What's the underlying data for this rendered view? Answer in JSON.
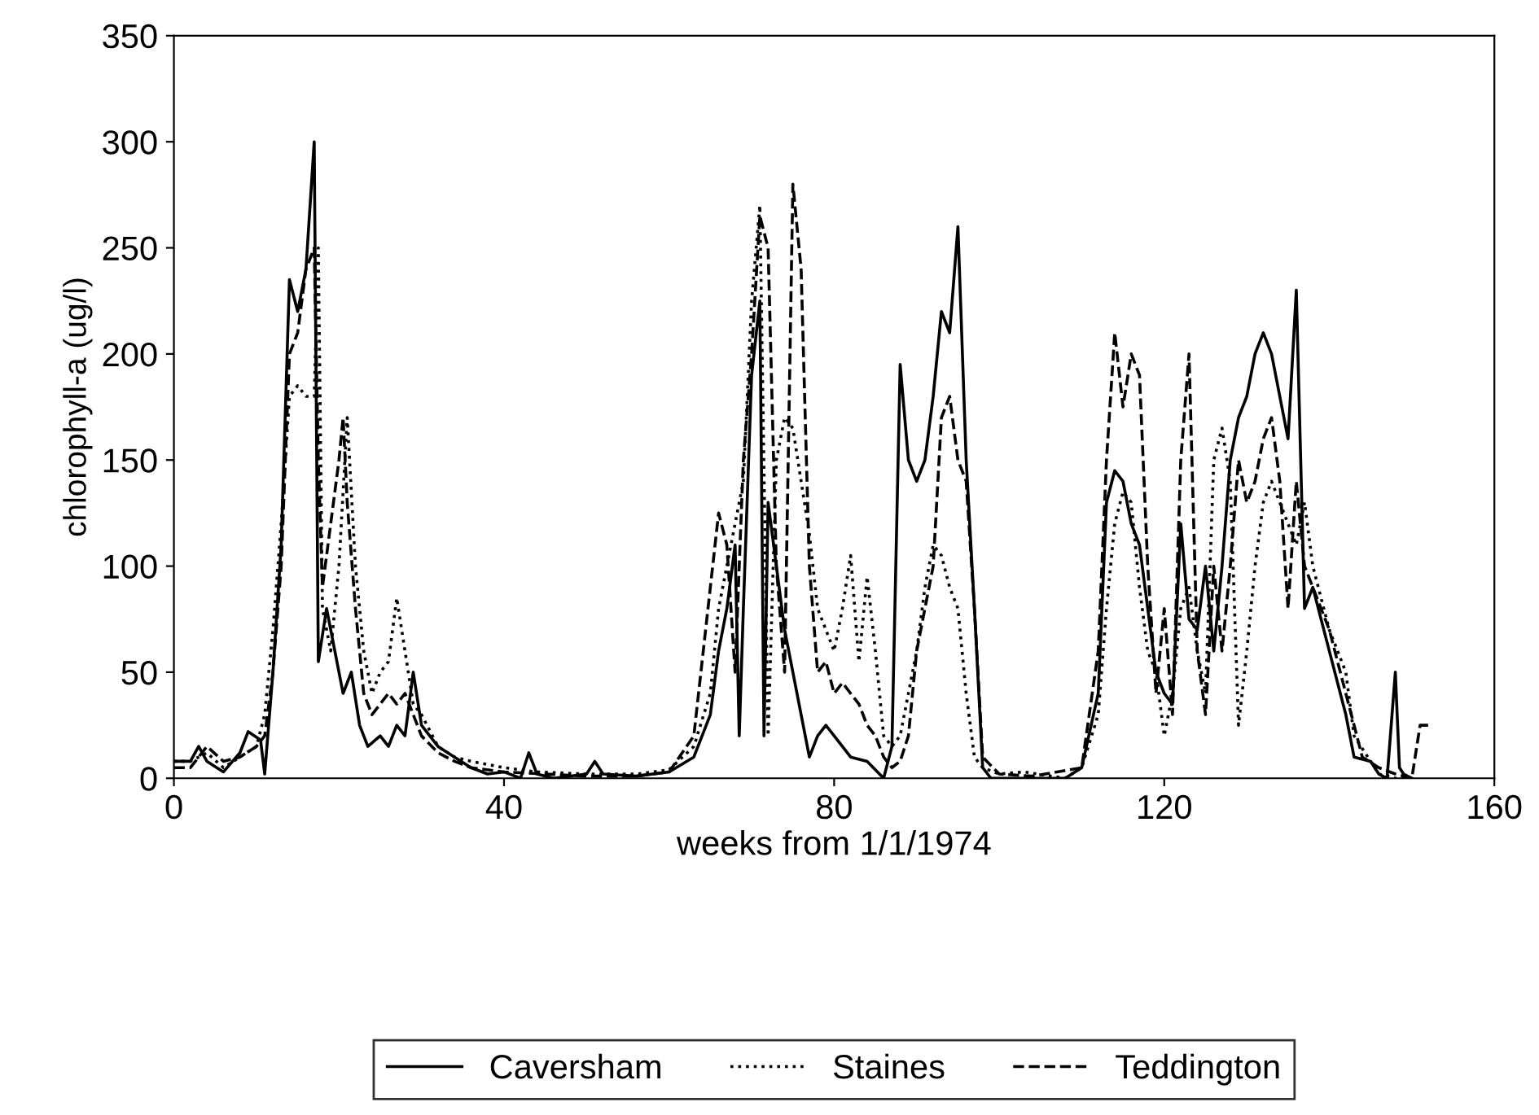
{
  "chart_data": {
    "type": "line",
    "xlabel": "weeks from 1/1/1974",
    "ylabel": "chlorophyll-a (ug/l)",
    "xlim": [
      0,
      160
    ],
    "xticks": [
      0,
      40,
      80,
      120,
      160
    ],
    "ylim": [
      0,
      350
    ],
    "yticks": [
      0,
      50,
      100,
      150,
      200,
      250,
      300,
      350
    ],
    "grid": false,
    "legend": "bottom",
    "marker": "none",
    "series": [
      {
        "name": "Caversham",
        "color": "#000000",
        "line_style": "solid",
        "x": [
          0,
          2,
          3,
          4,
          6,
          8,
          9,
          10.5,
          11,
          12,
          13,
          14,
          15,
          16,
          17,
          17.5,
          18.5,
          19.5,
          20.5,
          21.5,
          22.5,
          23.5,
          25,
          26,
          27,
          28,
          29,
          30,
          32,
          34,
          36,
          38,
          40,
          42,
          43,
          44,
          46,
          50,
          51,
          52,
          56,
          60,
          63,
          65,
          66,
          67,
          68,
          68.5,
          69,
          70,
          71,
          71.5,
          72,
          73,
          74,
          76,
          77,
          78,
          79,
          80,
          82,
          84,
          86,
          87,
          88,
          89,
          90,
          91,
          92,
          93,
          94,
          95,
          96,
          97,
          98,
          99,
          104,
          108,
          110,
          112,
          113,
          114,
          115,
          116,
          117,
          118,
          119,
          120,
          121,
          122,
          123,
          124,
          125,
          126,
          127,
          128,
          129,
          130,
          131,
          132,
          133,
          134,
          135,
          136,
          137,
          138,
          140,
          142,
          143,
          145,
          146,
          147,
          148,
          148.5,
          149,
          150
        ],
        "values": [
          8,
          8,
          15,
          8,
          3,
          12,
          22,
          18,
          2,
          50,
          110,
          235,
          220,
          240,
          300,
          55,
          80,
          60,
          40,
          50,
          25,
          15,
          20,
          15,
          25,
          20,
          50,
          25,
          15,
          10,
          5,
          2,
          3,
          0,
          12,
          2,
          0,
          2,
          8,
          2,
          1,
          3,
          10,
          30,
          60,
          80,
          110,
          20,
          80,
          190,
          225,
          20,
          130,
          100,
          70,
          30,
          10,
          20,
          25,
          20,
          10,
          8,
          0,
          15,
          195,
          150,
          140,
          150,
          180,
          220,
          210,
          260,
          150,
          80,
          5,
          0,
          0,
          0,
          5,
          40,
          130,
          145,
          140,
          120,
          110,
          80,
          50,
          40,
          35,
          120,
          75,
          70,
          100,
          60,
          100,
          150,
          170,
          180,
          200,
          210,
          200,
          180,
          160,
          230,
          80,
          90,
          60,
          30,
          10,
          8,
          2,
          0,
          50,
          5,
          2,
          0
        ]
      },
      {
        "name": "Staines",
        "color": "#000000",
        "line_style": "dotted",
        "x": [
          0,
          2,
          4,
          6,
          8,
          10,
          11,
          12,
          13,
          14,
          15,
          16,
          17,
          17.5,
          18,
          19,
          20,
          21,
          22,
          23,
          24,
          25,
          26,
          27,
          28,
          29,
          30,
          32,
          34,
          36,
          40,
          44,
          50,
          56,
          60,
          63,
          65,
          66,
          67,
          68,
          69,
          70,
          71,
          72,
          73,
          74,
          75,
          76,
          77,
          78,
          79,
          80,
          81,
          82,
          83,
          84,
          85,
          86,
          87,
          88,
          89,
          90,
          91,
          92,
          93,
          94,
          95,
          96,
          97,
          98,
          100,
          103,
          108,
          110,
          112,
          113,
          114,
          115,
          116,
          117,
          118,
          119,
          120,
          121,
          122,
          123,
          124,
          125,
          126,
          127,
          128,
          129,
          130,
          131,
          132,
          133,
          134,
          135,
          136,
          137,
          138,
          140,
          142,
          143,
          145,
          146,
          148,
          150
        ],
        "values": [
          8,
          8,
          12,
          5,
          10,
          15,
          30,
          70,
          120,
          180,
          185,
          180,
          180,
          250,
          80,
          60,
          100,
          170,
          100,
          60,
          40,
          50,
          55,
          85,
          60,
          35,
          30,
          15,
          10,
          8,
          5,
          3,
          2,
          2,
          4,
          15,
          40,
          80,
          100,
          120,
          140,
          225,
          270,
          20,
          150,
          170,
          165,
          140,
          115,
          80,
          70,
          60,
          80,
          105,
          55,
          95,
          60,
          20,
          15,
          20,
          40,
          60,
          90,
          110,
          105,
          90,
          80,
          40,
          10,
          5,
          2,
          3,
          0,
          5,
          30,
          80,
          120,
          135,
          130,
          90,
          60,
          50,
          20,
          40,
          80,
          90,
          60,
          40,
          150,
          165,
          140,
          25,
          60,
          100,
          130,
          140,
          130,
          120,
          110,
          130,
          100,
          70,
          50,
          20,
          8,
          2,
          0,
          0
        ]
      },
      {
        "name": "Teddington",
        "color": "#000000",
        "line_style": "dashed",
        "x": [
          0,
          2,
          4,
          6,
          8,
          10,
          11,
          12,
          13,
          14,
          15,
          16,
          17,
          17.5,
          18,
          19,
          20,
          20.5,
          21,
          22,
          23,
          24,
          25,
          26,
          27,
          28,
          30,
          32,
          34,
          36,
          40,
          45,
          50,
          56,
          60,
          63,
          65,
          66,
          67,
          68,
          69,
          70,
          71,
          72,
          73,
          74,
          75,
          76,
          77,
          78,
          79,
          80,
          81,
          82,
          83,
          84,
          85,
          86,
          87,
          88,
          89,
          90,
          91,
          92,
          93,
          94,
          95,
          96,
          97,
          98,
          100,
          104,
          110,
          112,
          113,
          114,
          115,
          116,
          117,
          118,
          119,
          120,
          121,
          122,
          123,
          124,
          125,
          126,
          127,
          128,
          129,
          130,
          131,
          132,
          133,
          134,
          135,
          136,
          137,
          138,
          140,
          142,
          144,
          146,
          148,
          150,
          151,
          152
        ],
        "values": [
          5,
          5,
          15,
          8,
          10,
          15,
          20,
          50,
          100,
          200,
          210,
          240,
          250,
          150,
          90,
          120,
          150,
          170,
          130,
          80,
          40,
          30,
          35,
          40,
          35,
          40,
          20,
          12,
          8,
          5,
          3,
          2,
          1,
          1,
          3,
          20,
          90,
          125,
          110,
          50,
          150,
          200,
          265,
          250,
          100,
          50,
          280,
          240,
          100,
          50,
          55,
          40,
          45,
          40,
          35,
          25,
          20,
          10,
          5,
          8,
          20,
          60,
          80,
          100,
          170,
          180,
          150,
          140,
          80,
          10,
          2,
          1,
          5,
          60,
          150,
          210,
          175,
          200,
          190,
          100,
          40,
          80,
          30,
          150,
          200,
          60,
          30,
          100,
          60,
          100,
          150,
          130,
          140,
          160,
          170,
          140,
          80,
          140,
          100,
          90,
          70,
          40,
          10,
          5,
          2,
          0,
          25,
          25
        ]
      }
    ]
  }
}
